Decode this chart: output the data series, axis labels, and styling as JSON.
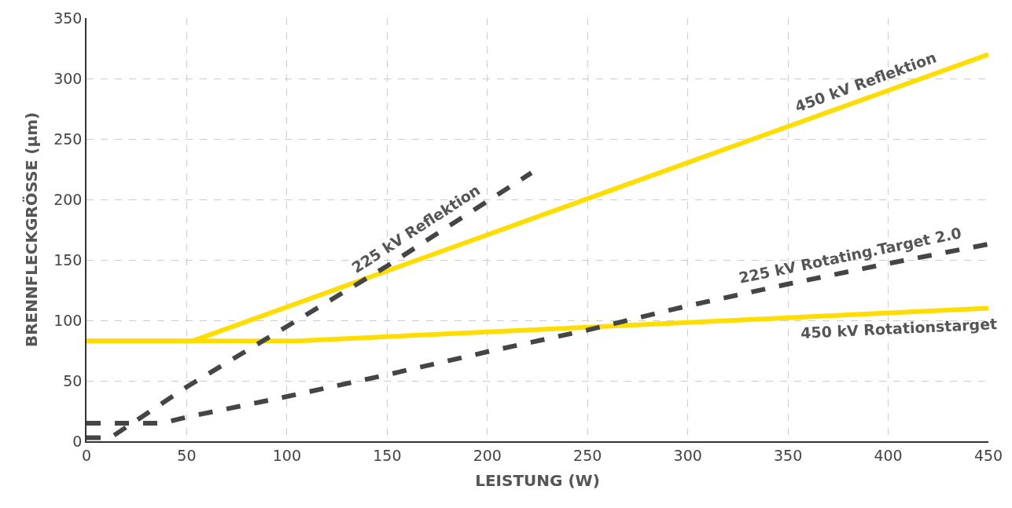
{
  "chart_data": {
    "type": "line",
    "xlabel": "LEISTUNG (W)",
    "ylabel": "BRENNFLECKGRÖSSE (µm)",
    "xlim": [
      0,
      450
    ],
    "ylim": [
      0,
      350
    ],
    "xticks": [
      0,
      50,
      100,
      150,
      200,
      250,
      300,
      350,
      400,
      450
    ],
    "yticks": [
      0,
      50,
      100,
      150,
      200,
      250,
      300,
      350
    ],
    "grid": true,
    "legend": false,
    "marker": "none",
    "series": [
      {
        "name": "450 kV Reflektion",
        "color": "#ffdd00",
        "line_style": "solid",
        "x": [
          0,
          53,
          450
        ],
        "values": [
          83,
          83,
          320
        ]
      },
      {
        "name": "450 kV Rotationstarget",
        "color": "#ffdd00",
        "line_style": "solid",
        "x": [
          0,
          105,
          450
        ],
        "values": [
          83,
          83,
          110
        ]
      },
      {
        "name": "225 kV Reflektion",
        "color": "#454545",
        "line_style": "dashed",
        "x": [
          0,
          12,
          50,
          100,
          150,
          222
        ],
        "values": [
          3,
          3,
          45,
          95,
          145,
          222
        ]
      },
      {
        "name": "225 kV Rotating.Target 2.0",
        "color": "#454545",
        "line_style": "dashed",
        "x": [
          0,
          38,
          50,
          100,
          150,
          200,
          250,
          300,
          350,
          400,
          450
        ],
        "values": [
          15,
          15,
          20,
          37,
          55,
          74,
          92,
          112,
          130,
          147,
          163
        ]
      }
    ]
  }
}
